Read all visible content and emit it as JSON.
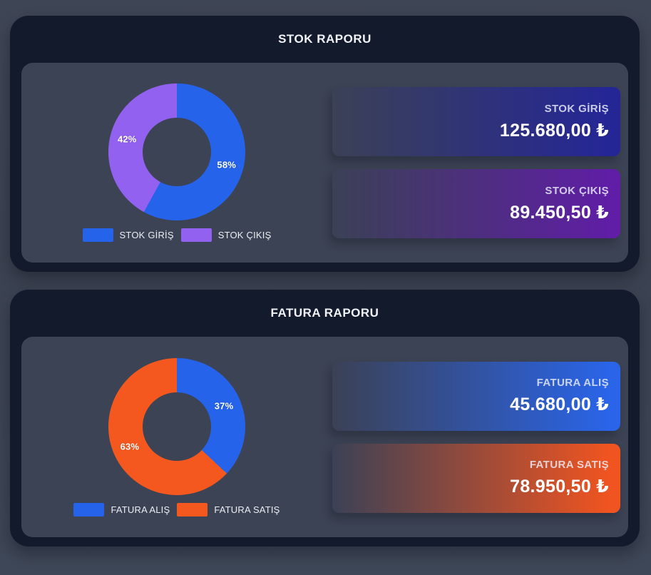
{
  "panels": [
    {
      "title": "STOK RAPORU",
      "chart_data": {
        "type": "pie",
        "donut": true,
        "labels": [
          "STOK GİRİŞ",
          "STOK ÇIKIŞ"
        ],
        "values": [
          58,
          42
        ],
        "value_labels": [
          "58%",
          "42%"
        ],
        "colors": [
          "#2563eb",
          "#9261f0"
        ],
        "legend_position": "bottom",
        "title": "STOK RAPORU"
      },
      "cards": [
        {
          "label": "STOK GİRİŞ",
          "value": "125.680,00 ₺",
          "gradient_from": "#3b4156",
          "gradient_to": "#252696"
        },
        {
          "label": "STOK ÇIKIŞ",
          "value": "89.450,50 ₺",
          "gradient_from": "#3b4156",
          "gradient_to": "#5f1ea5"
        }
      ]
    },
    {
      "title": "FATURA RAPORU",
      "chart_data": {
        "type": "pie",
        "donut": true,
        "labels": [
          "FATURA ALIŞ",
          "FATURA SATIŞ"
        ],
        "values": [
          37,
          63
        ],
        "value_labels": [
          "37%",
          "63%"
        ],
        "colors": [
          "#2563eb",
          "#f4581f"
        ],
        "legend_position": "bottom",
        "title": "FATURA RAPORU"
      },
      "cards": [
        {
          "label": "FATURA ALIŞ",
          "value": "45.680,00 ₺",
          "gradient_from": "#3b4156",
          "gradient_to": "#2a64e8"
        },
        {
          "label": "FATURA SATIŞ",
          "value": "78.950,50 ₺",
          "gradient_from": "#3b4156",
          "gradient_to": "#f05420"
        }
      ]
    }
  ]
}
